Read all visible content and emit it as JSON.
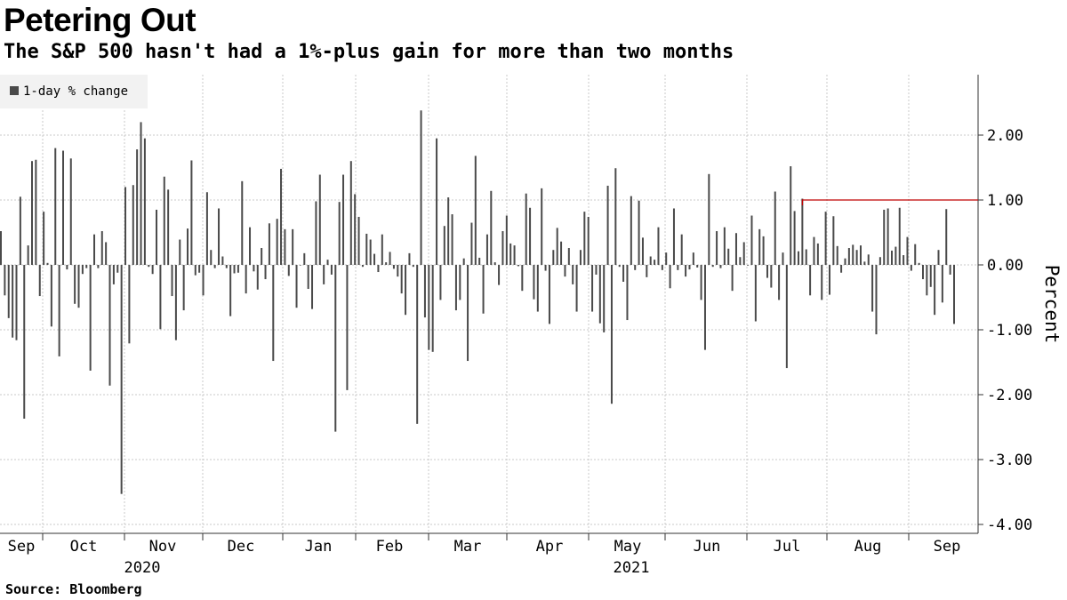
{
  "title": "Petering Out",
  "subtitle": "The S&P 500 hasn't had a 1%-plus gain for more than two months",
  "source": "Source: Bloomberg",
  "chart_data": {
    "type": "bar",
    "title": "Petering Out",
    "subtitle": "The S&P 500 hasn't had a 1%-plus gain for more than two months",
    "ylabel": "Percent",
    "xlabel": "",
    "ylim": [
      -4,
      3
    ],
    "yticks": [
      "2.00",
      "1.00",
      "0.00",
      "-1.00",
      "-2.00",
      "-3.00",
      "-4.00"
    ],
    "ytick_values": [
      2,
      1,
      0,
      -1,
      -2,
      -3,
      -4
    ],
    "months": [
      "Sep",
      "Oct",
      "Nov",
      "Dec",
      "Jan",
      "Feb",
      "Mar",
      "Apr",
      "May",
      "Jun",
      "Jul",
      "Aug",
      "Sep"
    ],
    "years": [
      "2020",
      "2021"
    ],
    "grid": true,
    "legend_position": "top-left",
    "series": [
      {
        "name": "1-day % change",
        "color": "#4a4a4a",
        "values": [
          0.52,
          -0.47,
          -0.82,
          -1.12,
          -1.16,
          1.05,
          -2.37,
          0.3,
          1.6,
          1.62,
          -0.48,
          0.82,
          0.03,
          -0.95,
          1.8,
          -1.41,
          1.76,
          -0.07,
          1.64,
          -0.6,
          -0.66,
          -0.14,
          -0.05,
          -1.63,
          0.47,
          -0.05,
          0.52,
          0.35,
          -1.86,
          -0.3,
          -0.12,
          -3.53,
          1.2,
          -1.21,
          1.23,
          1.78,
          2.2,
          1.95,
          -0.03,
          -0.14,
          0.85,
          -0.99,
          1.36,
          1.16,
          -0.48,
          -1.16,
          0.39,
          -0.7,
          0.56,
          1.61,
          -0.16,
          -0.12,
          -0.47,
          1.12,
          0.23,
          -0.05,
          0.87,
          0.13,
          -0.05,
          -0.79,
          -0.13,
          -0.12,
          1.29,
          -0.44,
          0.58,
          -0.1,
          -0.38,
          0.26,
          -0.22,
          0.64,
          -1.48,
          0.71,
          1.48,
          0.55,
          -0.17,
          0.55,
          -0.66,
          0.0,
          0.18,
          -0.37,
          -0.68,
          0.98,
          1.39,
          -0.3,
          0.08,
          -0.15,
          -2.57,
          0.97,
          1.39,
          -1.93,
          1.6,
          1.09,
          0.74,
          -0.03,
          0.48,
          0.39,
          0.17,
          -0.11,
          0.47,
          0.04,
          0.2,
          -0.06,
          -0.18,
          -0.44,
          -0.77,
          0.18,
          -0.03,
          -2.45,
          2.38,
          -0.81,
          -1.31,
          -1.34,
          1.95,
          -0.54,
          0.6,
          1.04,
          0.78,
          -0.7,
          -0.54,
          0.1,
          -1.48,
          0.65,
          1.68,
          0.11,
          -0.75,
          0.47,
          1.14,
          0.04,
          -0.31,
          0.52,
          0.76,
          0.33,
          0.3,
          -0.02,
          -0.4,
          1.1,
          0.88,
          -0.53,
          -0.72,
          1.18,
          -0.09,
          -0.91,
          0.23,
          0.57,
          0.36,
          -0.18,
          0.26,
          -0.3,
          -0.72,
          0.23,
          0.82,
          0.74,
          -0.72,
          -0.15,
          -0.9,
          -1.04,
          1.22,
          -2.14,
          1.49,
          -0.03,
          -0.26,
          -0.85,
          1.06,
          -0.08,
          0.99,
          0.42,
          -0.19,
          0.13,
          0.08,
          0.58,
          -0.08,
          0.19,
          -0.36,
          0.87,
          -0.08,
          0.47,
          -0.18,
          -0.07,
          0.19,
          -0.04,
          -0.54,
          -1.31,
          1.4,
          -0.03,
          0.52,
          -0.05,
          0.58,
          0.25,
          -0.4,
          0.49,
          0.12,
          0.35,
          -0.01,
          0.76,
          -0.87,
          0.55,
          0.44,
          -0.2,
          -0.35,
          1.13,
          -0.54,
          0.19,
          -1.59,
          1.52,
          0.83,
          0.21,
          1.02,
          0.24,
          -0.47,
          0.43,
          0.33,
          -0.54,
          0.82,
          -0.46,
          0.75,
          0.29,
          -0.12,
          0.1,
          0.26,
          0.31,
          0.23,
          0.3,
          0.05,
          0.16,
          -0.72,
          -1.07,
          0.12,
          0.85,
          0.87,
          0.22,
          0.28,
          0.88,
          0.15,
          0.43,
          -0.09,
          0.32,
          0.03,
          -0.22,
          -0.47,
          -0.34,
          -0.77,
          0.23,
          -0.58,
          0.86,
          -0.15,
          -0.91
        ]
      },
      {
        "name": "",
        "type": "line",
        "color": "#c00000",
        "y": 1.0
      }
    ]
  }
}
